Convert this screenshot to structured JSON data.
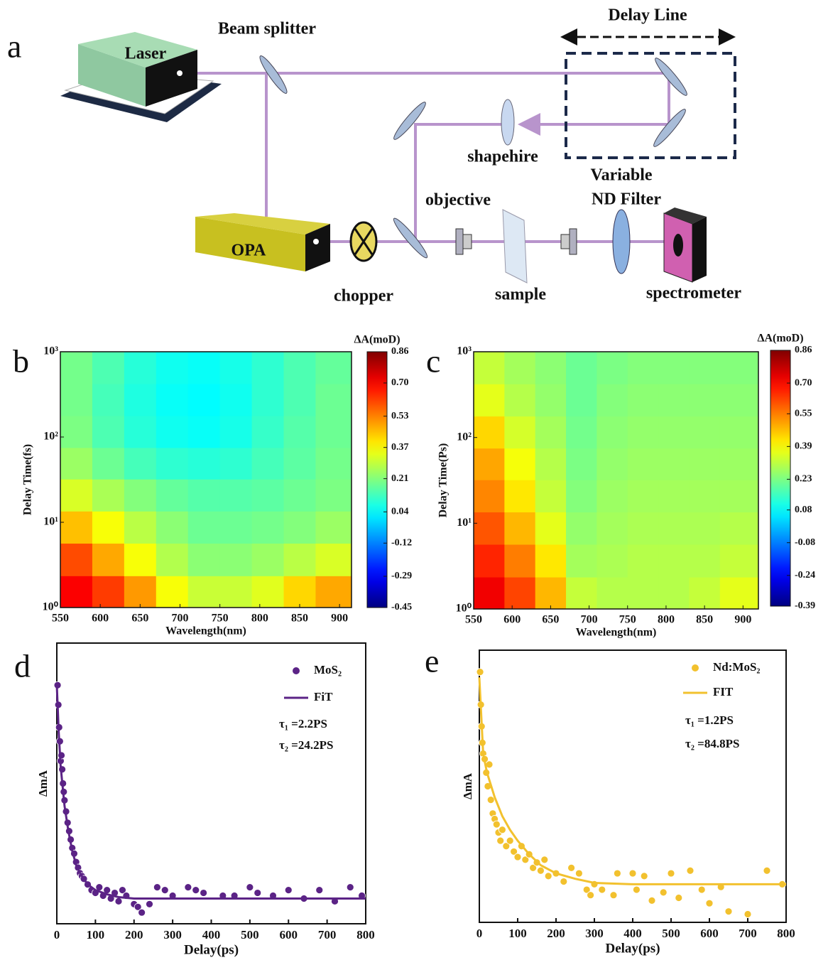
{
  "panel_labels": [
    "a",
    "b",
    "c",
    "d",
    "e"
  ],
  "diagram": {
    "labels": [
      "Laser",
      "Beam splitter",
      "Delay Line",
      "shapehire",
      "Variable",
      "ND Filter",
      "objective",
      "OPA",
      "chopper",
      "sample",
      "spectrometer"
    ]
  },
  "chart_data": [
    {
      "type": "heatmap",
      "xlabel": "Wavelength(nm)",
      "ylabel": "Delay Time(fs)",
      "colorbar_label": "ΔA(moD)",
      "colormap": "jet",
      "yscale": "log",
      "x": [
        570,
        610,
        650,
        690,
        730,
        770,
        810,
        850,
        890
      ],
      "y": [
        1.5,
        3.7,
        8.7,
        21,
        49,
        115,
        274,
        649
      ],
      "values": [
        [
          0.7,
          0.62,
          0.5,
          0.36,
          0.3,
          0.3,
          0.33,
          0.42,
          0.48
        ],
        [
          0.6,
          0.48,
          0.36,
          0.27,
          0.22,
          0.22,
          0.24,
          0.28,
          0.32
        ],
        [
          0.45,
          0.36,
          0.28,
          0.22,
          0.18,
          0.18,
          0.19,
          0.21,
          0.24
        ],
        [
          0.32,
          0.26,
          0.21,
          0.17,
          0.15,
          0.15,
          0.16,
          0.18,
          0.2
        ],
        [
          0.24,
          0.18,
          0.13,
          0.1,
          0.09,
          0.1,
          0.13,
          0.16,
          0.19
        ],
        [
          0.2,
          0.14,
          0.09,
          0.06,
          0.05,
          0.07,
          0.11,
          0.15,
          0.18
        ],
        [
          0.19,
          0.13,
          0.08,
          0.05,
          0.04,
          0.06,
          0.1,
          0.14,
          0.18
        ],
        [
          0.19,
          0.14,
          0.09,
          0.06,
          0.05,
          0.07,
          0.1,
          0.14,
          0.17
        ]
      ],
      "xlim": [
        550,
        915
      ],
      "xticks": [
        550,
        600,
        650,
        700,
        750,
        800,
        850,
        900
      ],
      "ylim": [
        1,
        1000
      ],
      "yticks": [
        {
          "value": 1,
          "label": "10⁰"
        },
        {
          "value": 10,
          "label": "10¹"
        },
        {
          "value": 100,
          "label": "10²"
        },
        {
          "value": 1000,
          "label": "10³"
        }
      ],
      "clim": [
        -0.45,
        0.86
      ],
      "cticks": [
        0.86,
        {
          "value": 0.7,
          "label": "0.70"
        },
        0.53,
        0.37,
        0.21,
        0.04,
        -0.12,
        -0.29,
        -0.45
      ]
    },
    {
      "type": "heatmap",
      "xlabel": "Wavelength(nm)",
      "ylabel": "Delay Time(Ps)",
      "colorbar_label": "ΔA(moD)",
      "colormap": "jet",
      "yscale": "log",
      "x": [
        570,
        610,
        650,
        690,
        730,
        770,
        810,
        850,
        890
      ],
      "y": [
        1.5,
        3.7,
        8.7,
        21,
        49,
        115,
        274,
        649
      ],
      "values": [
        [
          0.72,
          0.62,
          0.48,
          0.32,
          0.3,
          0.3,
          0.3,
          0.32,
          0.36
        ],
        [
          0.66,
          0.55,
          0.42,
          0.28,
          0.29,
          0.3,
          0.3,
          0.3,
          0.32
        ],
        [
          0.6,
          0.48,
          0.36,
          0.26,
          0.28,
          0.29,
          0.29,
          0.29,
          0.3
        ],
        [
          0.54,
          0.42,
          0.32,
          0.24,
          0.27,
          0.28,
          0.28,
          0.28,
          0.28
        ],
        [
          0.5,
          0.38,
          0.3,
          0.23,
          0.26,
          0.27,
          0.27,
          0.27,
          0.27
        ],
        [
          0.44,
          0.34,
          0.28,
          0.22,
          0.25,
          0.26,
          0.26,
          0.26,
          0.26
        ],
        [
          0.36,
          0.3,
          0.26,
          0.21,
          0.24,
          0.25,
          0.25,
          0.25,
          0.25
        ],
        [
          0.32,
          0.28,
          0.25,
          0.21,
          0.23,
          0.24,
          0.24,
          0.24,
          0.24
        ]
      ],
      "xlim": [
        550,
        920
      ],
      "xticks": [
        550,
        600,
        650,
        700,
        750,
        800,
        850,
        900
      ],
      "ylim": [
        1,
        1000
      ],
      "yticks": [
        {
          "value": 1,
          "label": "10⁰"
        },
        {
          "value": 10,
          "label": "10¹"
        },
        {
          "value": 100,
          "label": "10²"
        },
        {
          "value": 1000,
          "label": "10³"
        }
      ],
      "clim": [
        -0.39,
        0.86
      ],
      "cticks": [
        0.86,
        {
          "value": 0.7,
          "label": "0.70"
        },
        0.55,
        0.39,
        0.23,
        0.08,
        -0.08,
        -0.24,
        -0.39
      ]
    },
    {
      "type": "scatter",
      "xlabel": "Delay(ps)",
      "ylabel": "ΔmA",
      "xlim": [
        0,
        800
      ],
      "xticks": [
        0,
        100,
        200,
        300,
        400,
        500,
        600,
        700,
        800
      ],
      "ylim": [
        0,
        1
      ],
      "annotations": [
        "τ₁ =2.2PS",
        "τ₂ =24.2PS"
      ],
      "series": [
        {
          "name": "MoS₂",
          "color": "#5b2386",
          "marker": "circle",
          "x": [
            2,
            4,
            6,
            8,
            10,
            12,
            14,
            16,
            18,
            20,
            24,
            28,
            32,
            36,
            40,
            45,
            50,
            55,
            60,
            65,
            70,
            80,
            90,
            100,
            110,
            120,
            130,
            140,
            150,
            160,
            170,
            180,
            200,
            210,
            220,
            240,
            260,
            280,
            300,
            340,
            360,
            380,
            430,
            460,
            500,
            520,
            560,
            600,
            640,
            680,
            720,
            760,
            790
          ],
          "values": [
            0.85,
            0.78,
            0.7,
            0.65,
            0.58,
            0.6,
            0.55,
            0.5,
            0.47,
            0.44,
            0.4,
            0.36,
            0.33,
            0.3,
            0.27,
            0.25,
            0.22,
            0.2,
            0.18,
            0.17,
            0.16,
            0.14,
            0.12,
            0.11,
            0.13,
            0.1,
            0.12,
            0.09,
            0.11,
            0.08,
            0.12,
            0.1,
            0.07,
            0.06,
            0.04,
            0.07,
            0.13,
            0.12,
            0.1,
            0.13,
            0.12,
            0.11,
            0.1,
            0.1,
            0.13,
            0.11,
            0.1,
            0.12,
            0.09,
            0.12,
            0.08,
            0.13,
            0.1
          ]
        },
        {
          "name": "FiT",
          "color": "#5b2386",
          "marker": "line",
          "x": [
            0,
            5,
            10,
            20,
            30,
            40,
            50,
            60,
            80,
            100,
            130,
            160,
            200,
            250,
            300,
            400,
            500,
            600,
            700,
            800
          ],
          "values": [
            0.85,
            0.68,
            0.56,
            0.42,
            0.33,
            0.26,
            0.21,
            0.18,
            0.14,
            0.12,
            0.105,
            0.095,
            0.09,
            0.09,
            0.09,
            0.09,
            0.09,
            0.09,
            0.09,
            0.09
          ]
        }
      ]
    },
    {
      "type": "scatter",
      "xlabel": "Delay(ps)",
      "ylabel": "ΔmA",
      "xlim": [
        0,
        800
      ],
      "xticks": [
        0,
        100,
        200,
        300,
        400,
        500,
        600,
        700,
        800
      ],
      "ylim": [
        0,
        1
      ],
      "annotations": [
        "τ₁ =1.2PS",
        "τ₂ =84.8PS"
      ],
      "series": [
        {
          "name": "Nd:MoS₂",
          "color": "#f2c12e",
          "marker": "circle",
          "x": [
            2,
            4,
            6,
            8,
            10,
            14,
            18,
            22,
            26,
            30,
            35,
            40,
            45,
            50,
            55,
            60,
            70,
            80,
            90,
            100,
            110,
            120,
            130,
            140,
            150,
            160,
            170,
            180,
            200,
            220,
            240,
            260,
            280,
            290,
            300,
            320,
            350,
            360,
            400,
            410,
            430,
            450,
            480,
            500,
            520,
            550,
            580,
            600,
            630,
            650,
            700,
            750,
            790
          ],
          "values": [
            0.92,
            0.8,
            0.72,
            0.66,
            0.62,
            0.6,
            0.55,
            0.5,
            0.58,
            0.45,
            0.4,
            0.38,
            0.36,
            0.33,
            0.3,
            0.34,
            0.28,
            0.3,
            0.26,
            0.24,
            0.28,
            0.23,
            0.25,
            0.2,
            0.22,
            0.19,
            0.23,
            0.17,
            0.18,
            0.15,
            0.2,
            0.18,
            0.12,
            0.1,
            0.14,
            0.12,
            0.1,
            0.18,
            0.18,
            0.12,
            0.17,
            0.08,
            0.11,
            0.18,
            0.09,
            0.19,
            0.12,
            0.07,
            0.13,
            0.04,
            0.03,
            0.19,
            0.14
          ]
        },
        {
          "name": "FIT",
          "color": "#f2c12e",
          "marker": "line",
          "x": [
            0,
            10,
            20,
            40,
            60,
            80,
            100,
            130,
            160,
            200,
            250,
            300,
            400,
            500,
            600,
            700,
            800
          ],
          "values": [
            0.9,
            0.62,
            0.55,
            0.46,
            0.39,
            0.34,
            0.3,
            0.25,
            0.21,
            0.18,
            0.16,
            0.145,
            0.14,
            0.14,
            0.14,
            0.14,
            0.14
          ]
        }
      ]
    }
  ]
}
